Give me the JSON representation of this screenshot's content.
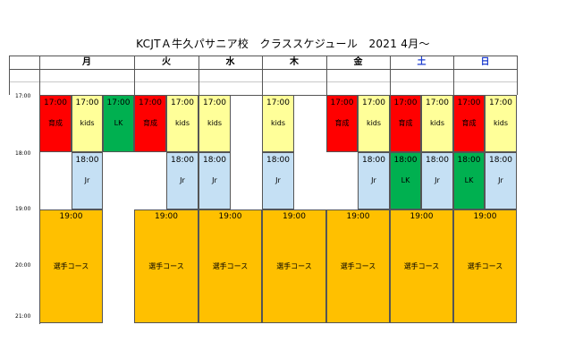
{
  "title": "KCJTＡ牛久パサニア校　クラススケジュール　2021 4月～",
  "colors": {
    "training": "#ff0000",
    "kids": "#ffff99",
    "lk": "#00b050",
    "jr": "#c5e0f4",
    "senshu": "#ffc000",
    "saturday": "#1f3fd0",
    "sunday": "#1f3fd0"
  },
  "days": [
    "月",
    "火",
    "水",
    "木",
    "金",
    "土",
    "日"
  ],
  "time_labels": [
    "17:00",
    "18:00",
    "19:00",
    "20:00",
    "21:00"
  ],
  "class_labels": {
    "training": "育成",
    "kids": "kids",
    "lk": "LK",
    "jr": "Jr",
    "senshu": "選手コース"
  },
  "start_times": {
    "t17": "17:00",
    "t18": "18:00",
    "t19": "19:00"
  }
}
